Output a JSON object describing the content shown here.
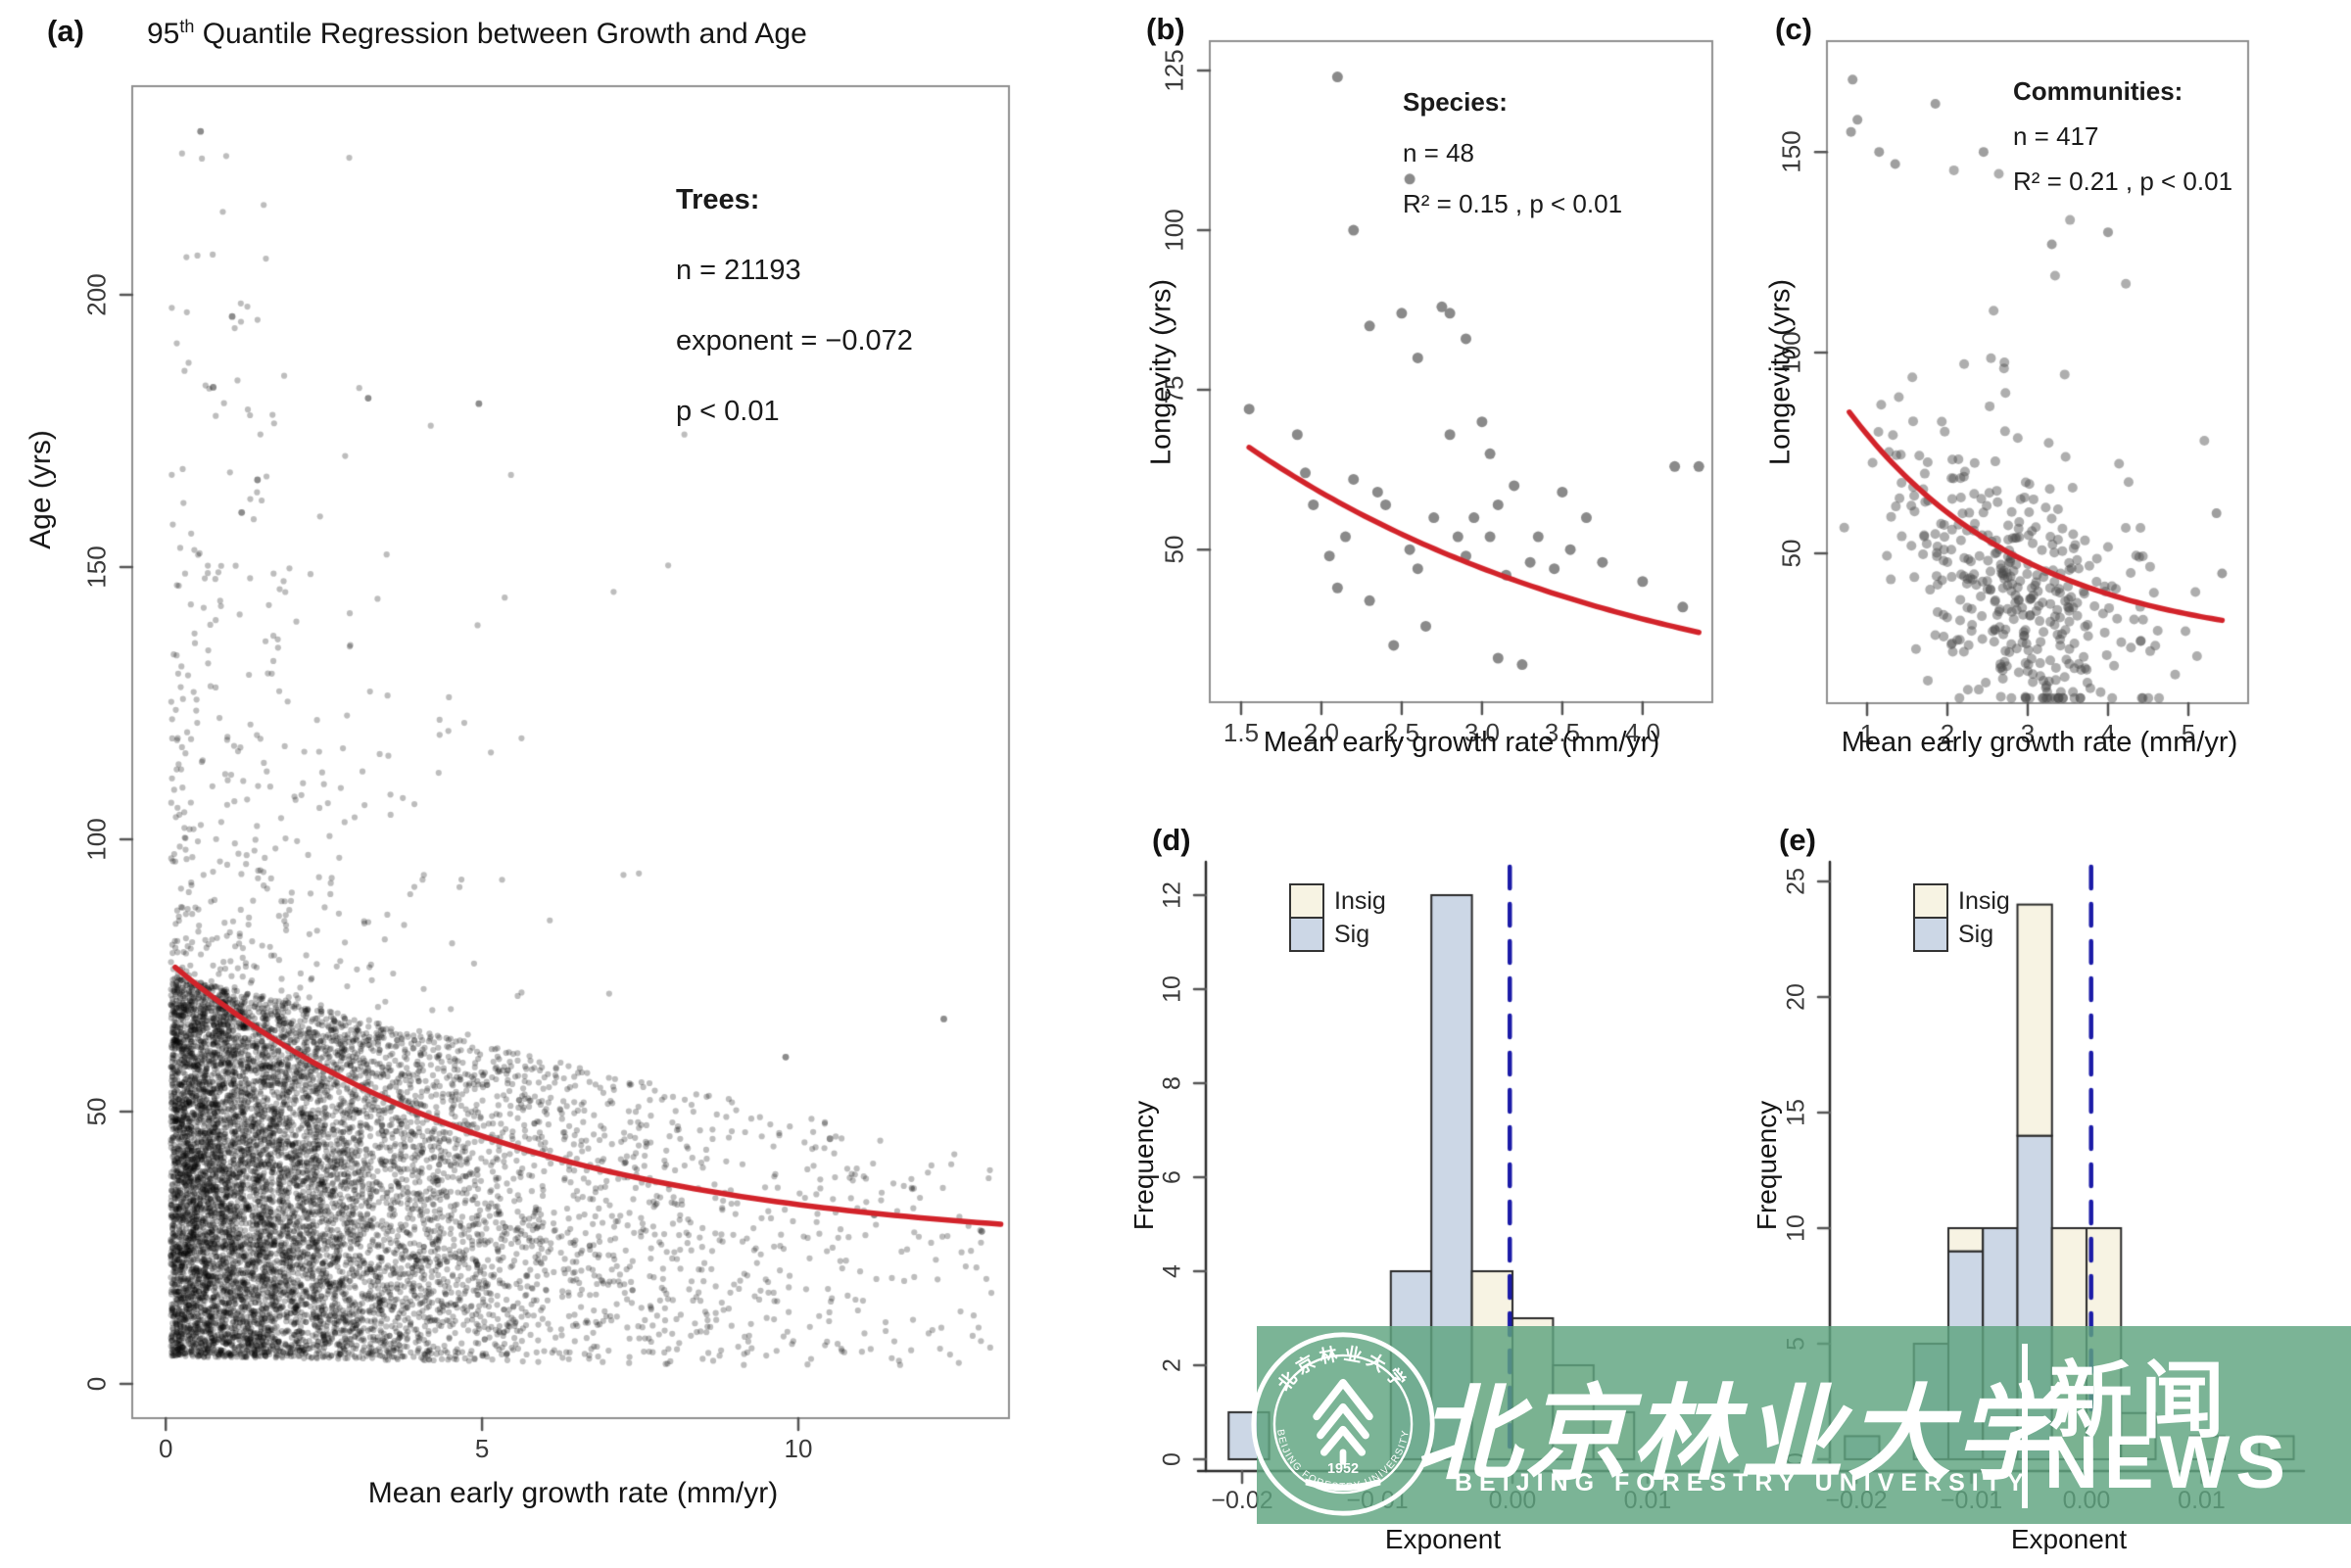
{
  "figure": {
    "background": "#ffffff",
    "accent_red": "#d2232a",
    "dash_blue": "#1c1ca8",
    "frame_gray": "#8f8f8f"
  },
  "watermark": {
    "banner_color_rgba": "rgba(94,163,127,0.82)",
    "university_cn": "北京林业大学",
    "university_en": "BEIJING FORESTRY UNIVERSITY",
    "news_cn": "新闻",
    "news_en": "NEWS",
    "seal": {
      "year": "1952",
      "ring_text_top": "北京林业大学",
      "ring_text_bottom": "BEIJING FORESTRY UNIVERSITY"
    }
  },
  "chart_data": [
    {
      "id": "a",
      "type": "scatter",
      "panel_label": "(a)",
      "title_prefix": "95",
      "title_sup": "th",
      "title_rest": " Quantile Regression between Growth and Age",
      "xlabel": "Mean early growth rate (mm/yr)",
      "ylabel": "Age (yrs)",
      "xlim": [
        -0.53,
        13.33
      ],
      "ylim": [
        -6.3,
        238.3
      ],
      "x_ticks": [
        {
          "v": 0,
          "label": "0"
        },
        {
          "v": 5,
          "label": "5"
        },
        {
          "v": 10,
          "label": "10"
        }
      ],
      "y_ticks": [
        {
          "v": 0,
          "label": "0"
        },
        {
          "v": 50,
          "label": "50"
        },
        {
          "v": 100,
          "label": "100"
        },
        {
          "v": 150,
          "label": "150"
        },
        {
          "v": 200,
          "label": "200"
        }
      ],
      "stats": {
        "heading": "Trees:",
        "lines": [
          "n = 21193",
          "exponent = −0.072",
          "p < 0.01"
        ]
      },
      "n_total": 21193,
      "points_simulated": true,
      "sim": {
        "seed": 42,
        "n_rendered": 9200,
        "x_exp_mean": 2.3,
        "y_core_max": 70,
        "y_core_pow": 1.1,
        "y_slope": 0.034,
        "tail_p": 0.14,
        "tail_xdecay": 4,
        "tail_mean": 42
      },
      "outlier_points": [
        [
          0.55,
          230
        ],
        [
          1.05,
          196
        ],
        [
          0.75,
          183
        ],
        [
          3.2,
          181
        ],
        [
          1.45,
          166
        ],
        [
          1.2,
          160
        ],
        [
          4.95,
          180
        ],
        [
          12.3,
          67
        ],
        [
          11.2,
          31
        ],
        [
          12.9,
          28
        ],
        [
          9.8,
          60
        ],
        [
          10.5,
          45
        ]
      ],
      "point_style": {
        "color": "rgba(0,0,0,0.26)",
        "radius": 3.1
      },
      "regression_curve": {
        "model": "y = a + b*exp(-k*(x-x0))",
        "a": 25,
        "b": 53,
        "k": 0.19,
        "x0": 0,
        "x_start": 0.15,
        "x_end": 13.2,
        "color": "#d2232a"
      }
    },
    {
      "id": "b",
      "type": "scatter",
      "panel_label": "(b)",
      "xlabel": "Mean early growth rate (mm/yr)",
      "ylabel": "Longevity (yrs)",
      "xlim": [
        1.305,
        4.434
      ],
      "ylim": [
        26.1,
        129.6
      ],
      "x_ticks": [
        {
          "v": 1.5,
          "label": "1.5"
        },
        {
          "v": 2.0,
          "label": "2.0"
        },
        {
          "v": 2.5,
          "label": "2.5"
        },
        {
          "v": 3.0,
          "label": "3.0"
        },
        {
          "v": 3.5,
          "label": "3.5"
        },
        {
          "v": 4.0,
          "label": "4.0"
        }
      ],
      "y_ticks": [
        {
          "v": 50,
          "label": "50"
        },
        {
          "v": 75,
          "label": "75"
        },
        {
          "v": 100,
          "label": "100"
        },
        {
          "v": 125,
          "label": "125"
        }
      ],
      "stats": {
        "heading": "Species:",
        "lines": [
          "n = 48",
          "R² = 0.15 , p < 0.01"
        ]
      },
      "points": [
        [
          1.55,
          72
        ],
        [
          1.85,
          68
        ],
        [
          1.9,
          62
        ],
        [
          1.95,
          57
        ],
        [
          2.05,
          49
        ],
        [
          2.1,
          124
        ],
        [
          2.1,
          44
        ],
        [
          2.15,
          52
        ],
        [
          2.2,
          100
        ],
        [
          2.2,
          61
        ],
        [
          2.3,
          85
        ],
        [
          2.3,
          42
        ],
        [
          2.35,
          59
        ],
        [
          2.4,
          57
        ],
        [
          2.45,
          35
        ],
        [
          2.5,
          87
        ],
        [
          2.55,
          108
        ],
        [
          2.55,
          50
        ],
        [
          2.6,
          80
        ],
        [
          2.6,
          47
        ],
        [
          2.65,
          38
        ],
        [
          2.7,
          55
        ],
        [
          2.75,
          88
        ],
        [
          2.8,
          87
        ],
        [
          2.8,
          68
        ],
        [
          2.85,
          52
        ],
        [
          2.9,
          83
        ],
        [
          2.9,
          49
        ],
        [
          2.95,
          55
        ],
        [
          3.0,
          70
        ],
        [
          3.05,
          65
        ],
        [
          3.05,
          52
        ],
        [
          3.1,
          57
        ],
        [
          3.1,
          33
        ],
        [
          3.15,
          46
        ],
        [
          3.2,
          60
        ],
        [
          3.25,
          32
        ],
        [
          3.3,
          48
        ],
        [
          3.35,
          52
        ],
        [
          3.45,
          47
        ],
        [
          3.5,
          59
        ],
        [
          3.55,
          50
        ],
        [
          3.65,
          55
        ],
        [
          3.75,
          48
        ],
        [
          4.0,
          45
        ],
        [
          4.2,
          63
        ],
        [
          4.25,
          41
        ],
        [
          4.35,
          63
        ]
      ],
      "point_style": {
        "color": "rgba(125,125,125,0.9)",
        "radius": 5.5
      },
      "regression_curve": {
        "model": "y = a + b*exp(-k*(x-x0))",
        "a": 23,
        "b": 43,
        "k": 0.4,
        "x0": 1.55,
        "x_start": 1.55,
        "x_end": 4.35,
        "color": "#d2232a"
      }
    },
    {
      "id": "c",
      "type": "scatter",
      "panel_label": "(c)",
      "xlabel": "Mean early growth rate (mm/yr)",
      "ylabel": "Longevity (yrs)",
      "xlim": [
        0.5,
        5.744
      ],
      "ylim": [
        12.7,
        177.6
      ],
      "x_ticks": [
        {
          "v": 1,
          "label": "1"
        },
        {
          "v": 2,
          "label": "2"
        },
        {
          "v": 3,
          "label": "3"
        },
        {
          "v": 4,
          "label": "4"
        },
        {
          "v": 5,
          "label": "5"
        }
      ],
      "y_ticks": [
        {
          "v": 50,
          "label": "50"
        },
        {
          "v": 100,
          "label": "100"
        },
        {
          "v": 150,
          "label": "150"
        }
      ],
      "stats": {
        "heading": "Communities:",
        "lines": [
          "n = 417",
          "R² = 0.21 , p < 0.01"
        ]
      },
      "n_total": 417,
      "points_simulated": true,
      "sim": {
        "seed": 7,
        "n_rendered": 406,
        "x_mean": 2.9,
        "x_sd": 0.8,
        "y_sd": 15,
        "y_offset": -9,
        "tail_p": 0.05
      },
      "outlier_points": [
        [
          0.82,
          168
        ],
        [
          0.88,
          158
        ],
        [
          0.8,
          155
        ],
        [
          1.15,
          150
        ],
        [
          1.85,
          162
        ],
        [
          2.45,
          150
        ],
        [
          1.35,
          147
        ],
        [
          4.0,
          130
        ],
        [
          3.3,
          127
        ],
        [
          5.35,
          60
        ],
        [
          5.42,
          45
        ]
      ],
      "point_style": {
        "color": "rgba(75,75,75,0.45)",
        "radius": 5
      },
      "regression_curve": {
        "model": "y = a + b*exp(-k*(x-x0))",
        "a": 26,
        "b": 60,
        "k": 0.45,
        "x0": 0.75,
        "x_start": 0.78,
        "x_end": 5.42,
        "color": "#d2232a"
      }
    },
    {
      "id": "d",
      "type": "histogram",
      "panel_label": "(d)",
      "xlabel": "Exponent",
      "ylabel": "Frequency",
      "legend": [
        "Insig",
        "Sig"
      ],
      "insig_color": "#f7f3e3",
      "sig_color": "#ccd7e6",
      "bin_width": 0.003,
      "bars": [
        {
          "x0": -0.021,
          "sig": 1,
          "insig": 0
        },
        {
          "x0": -0.009,
          "sig": 4,
          "insig": 0
        },
        {
          "x0": -0.006,
          "sig": 12,
          "insig": 0
        },
        {
          "x0": -0.003,
          "sig": 0,
          "insig": 4
        },
        {
          "x0": 0.0,
          "sig": 0,
          "insig": 3
        },
        {
          "x0": 0.003,
          "sig": 0,
          "insig": 2
        },
        {
          "x0": 0.006,
          "sig": 0,
          "insig": 1
        }
      ],
      "dashed_line_x": -0.0002,
      "x_ticks": [
        {
          "v": -0.02,
          "label": "−0.02"
        },
        {
          "v": -0.01,
          "label": "−0.01"
        },
        {
          "v": 0,
          "label": "0.00"
        },
        {
          "v": 0.01,
          "label": "0.01"
        }
      ],
      "y_ticks": [
        {
          "v": 0,
          "label": "0"
        },
        {
          "v": 2,
          "label": "2"
        },
        {
          "v": 4,
          "label": "4"
        },
        {
          "v": 6,
          "label": "6"
        },
        {
          "v": 8,
          "label": "8"
        },
        {
          "v": 10,
          "label": "10"
        },
        {
          "v": 12,
          "label": "12"
        }
      ]
    },
    {
      "id": "e",
      "type": "histogram",
      "panel_label": "(e)",
      "xlabel": "Exponent",
      "ylabel": "Frequency",
      "legend": [
        "Insig",
        "Sig"
      ],
      "insig_color": "#f7f3e3",
      "sig_color": "#ccd7e6",
      "bin_width": 0.003,
      "bars": [
        {
          "x0": -0.021,
          "sig": 1,
          "insig": 0
        },
        {
          "x0": -0.015,
          "sig": 5,
          "insig": 0
        },
        {
          "x0": -0.012,
          "sig": 9,
          "insig": 1
        },
        {
          "x0": -0.009,
          "sig": 10,
          "insig": 0
        },
        {
          "x0": -0.006,
          "sig": 14,
          "insig": 10
        },
        {
          "x0": -0.003,
          "sig": 0,
          "insig": 10
        },
        {
          "x0": 0.0,
          "sig": 0,
          "insig": 10
        },
        {
          "x0": 0.003,
          "sig": 0,
          "insig": 2
        },
        {
          "x0": 0.009,
          "sig": 0,
          "insig": 1
        },
        {
          "x0": 0.015,
          "sig": 0,
          "insig": 1
        }
      ],
      "dashed_line_x": 0.0004,
      "x_ticks": [
        {
          "v": -0.02,
          "label": "−0.02"
        },
        {
          "v": -0.01,
          "label": "−0.01"
        },
        {
          "v": 0,
          "label": "0.00"
        },
        {
          "v": 0.01,
          "label": "0.01"
        }
      ],
      "y_ticks": [
        {
          "v": 0,
          "label": "0"
        },
        {
          "v": 5,
          "label": "5"
        },
        {
          "v": 10,
          "label": "10"
        },
        {
          "v": 15,
          "label": "15"
        },
        {
          "v": 20,
          "label": "20"
        },
        {
          "v": 25,
          "label": "25"
        }
      ]
    }
  ]
}
